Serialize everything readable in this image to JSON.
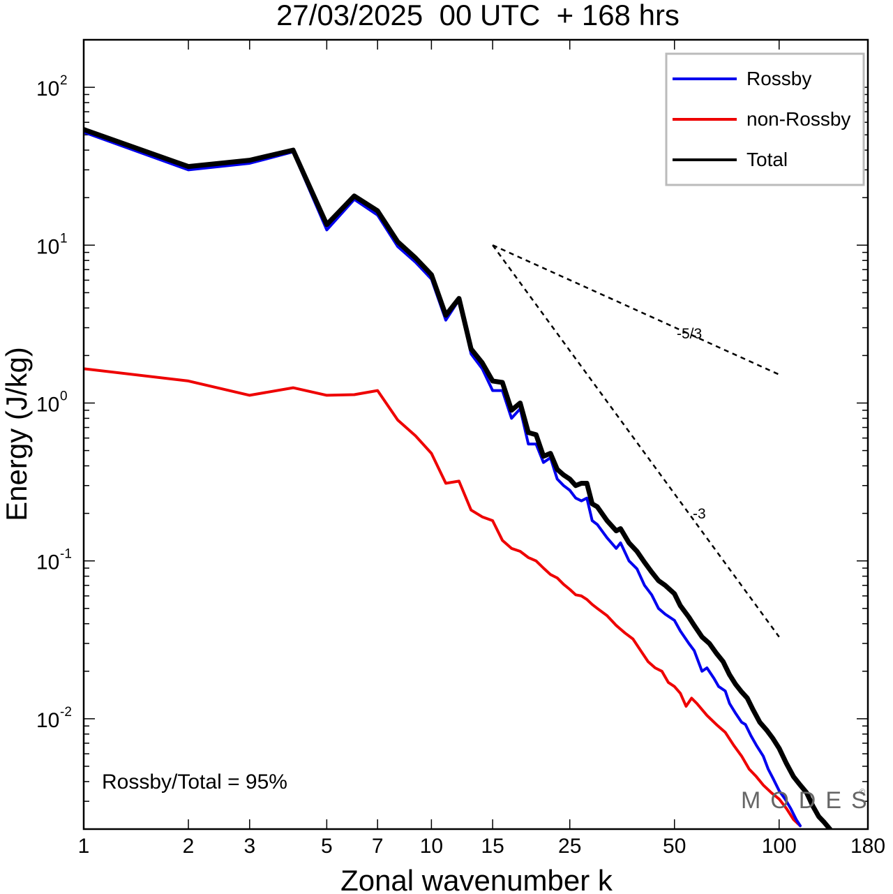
{
  "chart_data": {
    "type": "line",
    "title": "27/03/2025  00 UTC  + 168 hrs",
    "xlabel": "Zonal wavenumber k",
    "ylabel": "Energy (J/kg)",
    "x_scale": "log",
    "y_scale": "log",
    "xlim": [
      1,
      180
    ],
    "ylim": [
      0.002,
      200
    ],
    "x_ticks": [
      1,
      2,
      3,
      5,
      7,
      10,
      15,
      25,
      50,
      100,
      180
    ],
    "x_tick_labels": [
      "1",
      "2",
      "3",
      "5",
      "7",
      "10",
      "15",
      "25",
      "50",
      "100",
      "180"
    ],
    "y_ticks": [
      0.01,
      0.1,
      1,
      10,
      100
    ],
    "y_tick_labels": [
      {
        "base": "10",
        "exp": "-2"
      },
      {
        "base": "10",
        "exp": "-1"
      },
      {
        "base": "10",
        "exp": "0"
      },
      {
        "base": "10",
        "exp": "1"
      },
      {
        "base": "10",
        "exp": "2"
      }
    ],
    "legend_position": "top-right",
    "series": [
      {
        "name": "Rossby",
        "color": "#0000ee",
        "points": [
          [
            1,
            52
          ],
          [
            2,
            30
          ],
          [
            3,
            33
          ],
          [
            4,
            39
          ],
          [
            5,
            12.5
          ],
          [
            6,
            19.5
          ],
          [
            7,
            15.5
          ],
          [
            8,
            9.8
          ],
          [
            9,
            7.8
          ],
          [
            10,
            6.1
          ],
          [
            11,
            3.35
          ],
          [
            12,
            4.5
          ],
          [
            13,
            2.05
          ],
          [
            14,
            1.65
          ],
          [
            15,
            1.2
          ],
          [
            16,
            1.2
          ],
          [
            17,
            0.8
          ],
          [
            18,
            0.92
          ],
          [
            19,
            0.55
          ],
          [
            20,
            0.55
          ],
          [
            21,
            0.42
          ],
          [
            22,
            0.45
          ],
          [
            23,
            0.33
          ],
          [
            24,
            0.3
          ],
          [
            25,
            0.28
          ],
          [
            26,
            0.25
          ],
          [
            27,
            0.24
          ],
          [
            28,
            0.25
          ],
          [
            29,
            0.18
          ],
          [
            30,
            0.17
          ],
          [
            32,
            0.14
          ],
          [
            34,
            0.12
          ],
          [
            35,
            0.13
          ],
          [
            37,
            0.1
          ],
          [
            39,
            0.089
          ],
          [
            41,
            0.07
          ],
          [
            43,
            0.061
          ],
          [
            45,
            0.05
          ],
          [
            47,
            0.046
          ],
          [
            50,
            0.042
          ],
          [
            52,
            0.036
          ],
          [
            55,
            0.03
          ],
          [
            57,
            0.027
          ],
          [
            60,
            0.02
          ],
          [
            62,
            0.021
          ],
          [
            65,
            0.018
          ],
          [
            67,
            0.016
          ],
          [
            70,
            0.015
          ],
          [
            72,
            0.0125
          ],
          [
            75,
            0.0108
          ],
          [
            78,
            0.0095
          ],
          [
            80,
            0.0092
          ],
          [
            83,
            0.0078
          ],
          [
            86,
            0.0068
          ],
          [
            90,
            0.0058
          ],
          [
            93,
            0.0048
          ],
          [
            96,
            0.0042
          ],
          [
            100,
            0.0035
          ],
          [
            104,
            0.0031
          ],
          [
            108,
            0.0027
          ],
          [
            112,
            0.0023
          ],
          [
            115,
            0.0021
          ]
        ]
      },
      {
        "name": "non-Rossby",
        "color": "#ee0000",
        "points": [
          [
            1,
            1.65
          ],
          [
            2,
            1.38
          ],
          [
            3,
            1.12
          ],
          [
            4,
            1.25
          ],
          [
            5,
            1.12
          ],
          [
            6,
            1.13
          ],
          [
            7,
            1.2
          ],
          [
            8,
            0.78
          ],
          [
            9,
            0.62
          ],
          [
            10,
            0.48
          ],
          [
            11,
            0.31
          ],
          [
            12,
            0.32
          ],
          [
            13,
            0.21
          ],
          [
            14,
            0.19
          ],
          [
            15,
            0.18
          ],
          [
            16,
            0.135
          ],
          [
            17,
            0.12
          ],
          [
            18,
            0.115
          ],
          [
            19,
            0.105
          ],
          [
            20,
            0.1
          ],
          [
            21,
            0.09
          ],
          [
            22,
            0.082
          ],
          [
            23,
            0.078
          ],
          [
            24,
            0.071
          ],
          [
            25,
            0.066
          ],
          [
            26,
            0.061
          ],
          [
            27,
            0.06
          ],
          [
            28,
            0.057
          ],
          [
            29,
            0.053
          ],
          [
            30,
            0.05
          ],
          [
            32,
            0.045
          ],
          [
            34,
            0.039
          ],
          [
            36,
            0.035
          ],
          [
            38,
            0.032
          ],
          [
            40,
            0.027
          ],
          [
            42,
            0.023
          ],
          [
            44,
            0.021
          ],
          [
            46,
            0.02
          ],
          [
            48,
            0.017
          ],
          [
            50,
            0.016
          ],
          [
            52,
            0.0145
          ],
          [
            54,
            0.012
          ],
          [
            56,
            0.0135
          ],
          [
            58,
            0.0125
          ],
          [
            62,
            0.0105
          ],
          [
            66,
            0.0092
          ],
          [
            70,
            0.0082
          ],
          [
            74,
            0.0068
          ],
          [
            78,
            0.0058
          ],
          [
            82,
            0.0048
          ],
          [
            86,
            0.0043
          ],
          [
            90,
            0.0038
          ],
          [
            95,
            0.0034
          ],
          [
            100,
            0.0031
          ],
          [
            105,
            0.0027
          ],
          [
            110,
            0.0023
          ],
          [
            115,
            0.0021
          ]
        ]
      },
      {
        "name": "Total",
        "color": "#000000",
        "points": [
          [
            1,
            54
          ],
          [
            2,
            31.5
          ],
          [
            3,
            34.5
          ],
          [
            4,
            40
          ],
          [
            5,
            13.5
          ],
          [
            6,
            20.5
          ],
          [
            7,
            16.5
          ],
          [
            8,
            10.5
          ],
          [
            9,
            8.3
          ],
          [
            10,
            6.5
          ],
          [
            11,
            3.6
          ],
          [
            12,
            4.6
          ],
          [
            13,
            2.2
          ],
          [
            14,
            1.8
          ],
          [
            15,
            1.38
          ],
          [
            16,
            1.35
          ],
          [
            17,
            0.9
          ],
          [
            18,
            1.0
          ],
          [
            19,
            0.65
          ],
          [
            20,
            0.63
          ],
          [
            21,
            0.46
          ],
          [
            22,
            0.48
          ],
          [
            23,
            0.38
          ],
          [
            24,
            0.35
          ],
          [
            25,
            0.33
          ],
          [
            26,
            0.3
          ],
          [
            27,
            0.31
          ],
          [
            28,
            0.31
          ],
          [
            29,
            0.23
          ],
          [
            30,
            0.22
          ],
          [
            32,
            0.18
          ],
          [
            34,
            0.155
          ],
          [
            35,
            0.16
          ],
          [
            37,
            0.13
          ],
          [
            39,
            0.115
          ],
          [
            41,
            0.098
          ],
          [
            43,
            0.085
          ],
          [
            45,
            0.075
          ],
          [
            47,
            0.07
          ],
          [
            50,
            0.062
          ],
          [
            52,
            0.052
          ],
          [
            55,
            0.044
          ],
          [
            57,
            0.039
          ],
          [
            60,
            0.033
          ],
          [
            63,
            0.03
          ],
          [
            66,
            0.026
          ],
          [
            69,
            0.023
          ],
          [
            72,
            0.019
          ],
          [
            75,
            0.0165
          ],
          [
            78,
            0.0148
          ],
          [
            81,
            0.0135
          ],
          [
            84,
            0.0115
          ],
          [
            88,
            0.0095
          ],
          [
            92,
            0.0085
          ],
          [
            96,
            0.0075
          ],
          [
            100,
            0.0065
          ],
          [
            105,
            0.0052
          ],
          [
            110,
            0.0043
          ],
          [
            115,
            0.0038
          ],
          [
            120,
            0.0034
          ],
          [
            125,
            0.0028
          ],
          [
            130,
            0.0024
          ],
          [
            135,
            0.0022
          ],
          [
            140,
            0.002
          ]
        ]
      }
    ],
    "reference_lines": [
      {
        "label": "-5/3",
        "points": [
          [
            15,
            10
          ],
          [
            101,
            1.5
          ]
        ]
      },
      {
        "label": "-3",
        "points": [
          [
            15,
            10
          ],
          [
            100,
            0.033
          ]
        ]
      }
    ],
    "annotation": "Rossby/Total = 95%",
    "watermark": "MODES",
    "watermark_mark": "©"
  }
}
